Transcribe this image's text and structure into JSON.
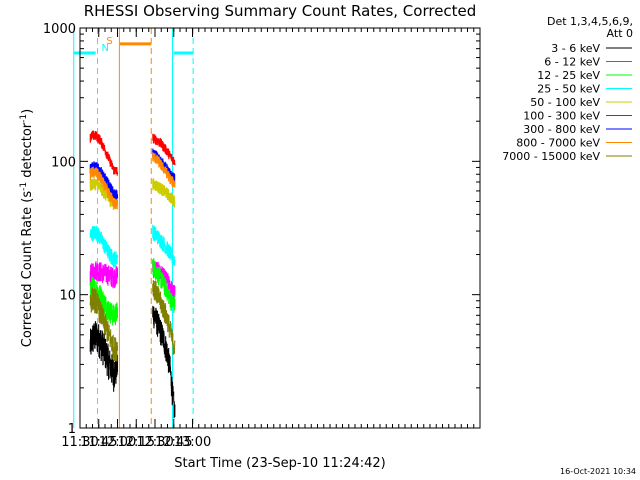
{
  "chart_data": {
    "type": "line",
    "title": "RHESSI Observing Summary Count Rates, Corrected",
    "xlabel": "Start Time (23-Sep-10 11:24:42)",
    "ylabel_main": "Corrected Count Rate (s",
    "ylabel_sup1": "-1",
    "ylabel_mid": " detector",
    "ylabel_sup2": "-1",
    "ylabel_end": ")",
    "y_scale": "log",
    "ylim": [
      1,
      1000
    ],
    "xlim_minutes": [
      690,
      1010
    ],
    "x_ticks": [
      {
        "label": "11:30",
        "minutes": 690
      },
      {
        "label": "11:45",
        "minutes": 705
      },
      {
        "label": "12:00",
        "minutes": 720
      },
      {
        "label": "12:15",
        "minutes": 735
      },
      {
        "label": "12:30",
        "minutes": 750
      },
      {
        "label": "12:45",
        "minutes": 765
      },
      {
        "label": "13:00",
        "minutes": 780
      }
    ],
    "y_ticks": [
      {
        "label": "1",
        "value": 1
      },
      {
        "label": "10",
        "value": 10
      },
      {
        "label": "100",
        "value": 100
      },
      {
        "label": "1000",
        "value": 1000
      }
    ],
    "legend_header": [
      "Det 1,3,4,5,6,9,",
      "Att 0"
    ],
    "legend_position": "right",
    "series": [
      {
        "name": "3 - 6 keV",
        "color": "#000000",
        "segments": [
          {
            "x": [
              "11:38:00",
              "11:40:00",
              "11:43:00",
              "11:46:00",
              "11:50:00",
              "11:54:00",
              "11:57:00",
              "12:00:00"
            ],
            "y": [
              4.2,
              4.8,
              5.0,
              4.6,
              3.8,
              3.0,
              2.6,
              3.0
            ]
          },
          {
            "x": [
              "12:28:00",
              "12:31:00",
              "12:34:00",
              "12:37:00",
              "12:40:00",
              "12:42:00",
              "12:44:00",
              "12:46:00"
            ],
            "y": [
              7.5,
              6.5,
              5.5,
              4.6,
              3.6,
              2.8,
              1.8,
              1.2
            ]
          }
        ]
      },
      {
        "name": "6 - 12 keV",
        "color": "#ff00ff",
        "segments": [
          {
            "x": [
              "11:38:00",
              "11:40:00",
              "11:43:00",
              "11:46:00",
              "11:50:00",
              "11:54:00",
              "11:57:00",
              "12:00:00"
            ],
            "y": [
              14.0,
              15.0,
              15.5,
              15.0,
              14.5,
              14.0,
              13.5,
              14.5
            ]
          },
          {
            "x": [
              "12:28:00",
              "12:31:00",
              "12:34:00",
              "12:37:00",
              "12:40:00",
              "12:42:00",
              "12:44:00",
              "12:46:00"
            ],
            "y": [
              16.0,
              15.5,
              14.5,
              13.5,
              12.5,
              11.5,
              10.5,
              10.0
            ]
          }
        ]
      },
      {
        "name": "12 - 25 keV",
        "color": "#00ff00",
        "segments": [
          {
            "x": [
              "11:38:00",
              "11:40:00",
              "11:43:00",
              "11:46:00",
              "11:50:00",
              "11:54:00",
              "11:57:00",
              "12:00:00"
            ],
            "y": [
              11.0,
              11.5,
              11.0,
              10.0,
              8.5,
              7.5,
              7.0,
              7.5
            ]
          },
          {
            "x": [
              "12:28:00",
              "12:31:00",
              "12:34:00",
              "12:37:00",
              "12:40:00",
              "12:42:00",
              "12:44:00",
              "12:46:00"
            ],
            "y": [
              17.0,
              15.0,
              13.5,
              12.0,
              10.5,
              9.5,
              8.5,
              8.5
            ]
          }
        ]
      },
      {
        "name": "25 - 50 keV",
        "color": "#00ffff",
        "segments": [
          {
            "x": [
              "11:38:00",
              "11:40:00",
              "11:43:00",
              "11:46:00",
              "11:50:00",
              "11:54:00",
              "11:57:00",
              "12:00:00"
            ],
            "y": [
              28.0,
              29.0,
              29.5,
              27.0,
              23.0,
              20.0,
              18.5,
              19.0
            ]
          },
          {
            "x": [
              "12:28:00",
              "12:31:00",
              "12:34:00",
              "12:37:00",
              "12:40:00",
              "12:42:00",
              "12:44:00",
              "12:46:00"
            ],
            "y": [
              30.0,
              28.0,
              26.0,
              24.0,
              22.0,
              20.5,
              19.0,
              18.5
            ]
          }
        ]
      },
      {
        "name": "50 - 100 keV",
        "color": "#cccc00",
        "segments": [
          {
            "x": [
              "11:38:00",
              "11:40:00",
              "11:43:00",
              "11:46:00",
              "11:50:00",
              "11:54:00",
              "11:57:00",
              "12:00:00"
            ],
            "y": [
              65.0,
              68.0,
              68.0,
              64.0,
              57.0,
              51.0,
              48.0,
              50.0
            ]
          },
          {
            "x": [
              "12:28:00",
              "12:31:00",
              "12:34:00",
              "12:37:00",
              "12:40:00",
              "12:42:00",
              "12:44:00",
              "12:46:00"
            ],
            "y": [
              68.0,
              66.0,
              63.0,
              60.0,
              57.0,
              54.0,
              52.0,
              50.0
            ]
          }
        ]
      },
      {
        "name": "100 - 300 keV",
        "color": "#ff0000",
        "segments": [
          {
            "x": [
              "11:38:00",
              "11:40:00",
              "11:43:00",
              "11:46:00",
              "11:50:00",
              "11:54:00",
              "11:57:00",
              "12:00:00"
            ],
            "y": [
              150.0,
              157.0,
              155.0,
              145.0,
              122.0,
              100.0,
              86.0,
              84.0
            ]
          },
          {
            "x": [
              "12:28:00",
              "12:31:00",
              "12:34:00",
              "12:37:00",
              "12:40:00",
              "12:42:00",
              "12:44:00",
              "12:46:00"
            ],
            "y": [
              150.0,
              145.0,
              138.0,
              128.0,
              118.0,
              110.0,
              104.0,
              100.0
            ]
          }
        ]
      },
      {
        "name": "300 - 800 keV",
        "color": "#0000ff",
        "segments": [
          {
            "x": [
              "11:38:00",
              "11:40:00",
              "11:43:00",
              "11:46:00",
              "11:50:00",
              "11:54:00",
              "11:57:00",
              "12:00:00"
            ],
            "y": [
              88.0,
              92.0,
              90.0,
              85.0,
              74.0,
              64.0,
              57.0,
              55.0
            ]
          },
          {
            "x": [
              "12:28:00",
              "12:31:00",
              "12:34:00",
              "12:37:00",
              "12:40:00",
              "12:42:00",
              "12:44:00",
              "12:46:00"
            ],
            "y": [
              115.0,
              110.0,
              102.0,
              94.0,
              86.0,
              80.0,
              76.0,
              74.0
            ]
          }
        ]
      },
      {
        "name": "800 - 7000 keV",
        "color": "#ff8800",
        "segments": [
          {
            "x": [
              "11:38:00",
              "11:40:00",
              "11:43:00",
              "11:46:00",
              "11:50:00",
              "11:54:00",
              "11:57:00",
              "12:00:00"
            ],
            "y": [
              80.0,
              83.0,
              82.0,
              76.0,
              64.0,
              55.0,
              49.0,
              47.0
            ]
          },
          {
            "x": [
              "12:28:00",
              "12:31:00",
              "12:34:00",
              "12:37:00",
              "12:40:00",
              "12:42:00",
              "12:44:00",
              "12:46:00"
            ],
            "y": [
              110.0,
              104.0,
              96.0,
              88.0,
              80.0,
              74.0,
              70.0,
              68.0
            ]
          }
        ]
      },
      {
        "name": "7000 - 15000 keV",
        "color": "#808000",
        "segments": [
          {
            "x": [
              "11:38:00",
              "11:40:00",
              "11:43:00",
              "11:46:00",
              "11:50:00",
              "11:54:00",
              "11:57:00",
              "12:00:00"
            ],
            "y": [
              9.0,
              9.5,
              9.0,
              7.5,
              6.0,
              4.8,
              4.0,
              4.0
            ]
          },
          {
            "x": [
              "12:28:00",
              "12:31:00",
              "12:34:00",
              "12:37:00",
              "12:40:00",
              "12:42:00",
              "12:44:00",
              "12:46:00"
            ],
            "y": [
              12.0,
              10.5,
              9.0,
              7.8,
              6.5,
              5.5,
              4.5,
              3.8
            ]
          }
        ]
      }
    ],
    "annotations": {
      "n_label": "N",
      "s_label": "S",
      "cyan_color": "#00ffff",
      "orange_color": "#ff8800",
      "cyan_vlines_solid": [
        "11:25:00",
        "12:44:00"
      ],
      "cyan_vlines_dashed": [
        "11:44:00",
        "13:00:30"
      ],
      "orange_vlines_solid": [
        "12:01:30"
      ],
      "orange_vlines_dashed": [
        "12:27:00"
      ],
      "cyan_hbars": [
        {
          "x": [
            "11:25:00",
            "11:42:30"
          ],
          "y": 650
        },
        {
          "x": [
            "12:45:00",
            "13:00:30"
          ],
          "y": 650
        }
      ],
      "orange_hbar": {
        "x": [
          "12:02:00",
          "12:27:00"
        ],
        "y": 760
      }
    },
    "timestamp": "16-Oct-2021 10:34"
  }
}
